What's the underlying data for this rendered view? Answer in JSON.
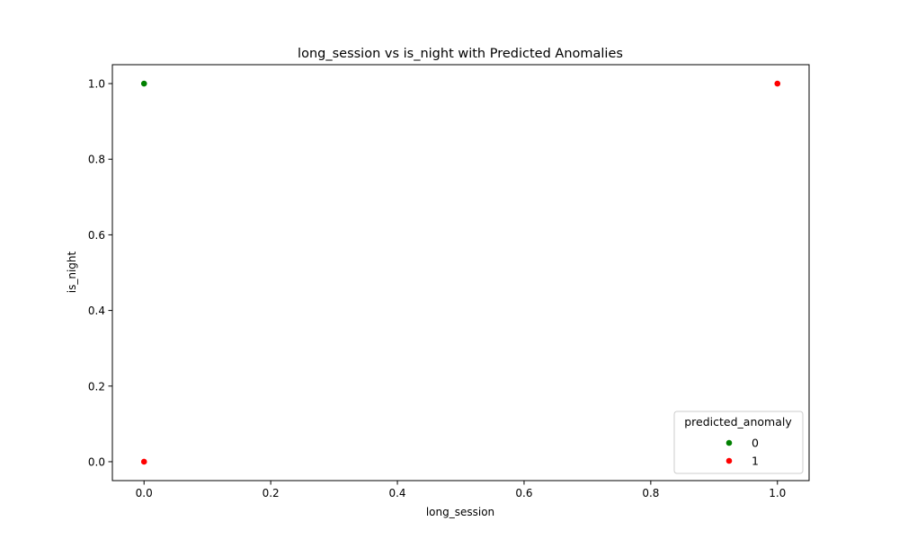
{
  "chart_data": {
    "type": "scatter",
    "title": "long_session vs is_night with Predicted Anomalies",
    "xlabel": "long_session",
    "ylabel": "is_night",
    "xlim": [
      -0.05,
      1.05
    ],
    "ylim": [
      -0.05,
      1.05
    ],
    "xticks": [
      0.0,
      0.2,
      0.4,
      0.6,
      0.8,
      1.0
    ],
    "yticks": [
      0.0,
      0.2,
      0.4,
      0.6,
      0.8,
      1.0
    ],
    "xtick_labels": [
      "0.0",
      "0.2",
      "0.4",
      "0.6",
      "0.8",
      "1.0"
    ],
    "ytick_labels": [
      "0.0",
      "0.2",
      "0.4",
      "0.6",
      "0.8",
      "1.0"
    ],
    "grid": false,
    "legend": {
      "title": "predicted_anomaly",
      "placement": "bottom-right"
    },
    "series": [
      {
        "name": "0",
        "color": "#008000",
        "points": [
          {
            "x": 0.0,
            "y": 1.0
          }
        ]
      },
      {
        "name": "1",
        "color": "#ff0000",
        "points": [
          {
            "x": 0.0,
            "y": 0.0
          },
          {
            "x": 1.0,
            "y": 1.0
          }
        ]
      }
    ]
  }
}
